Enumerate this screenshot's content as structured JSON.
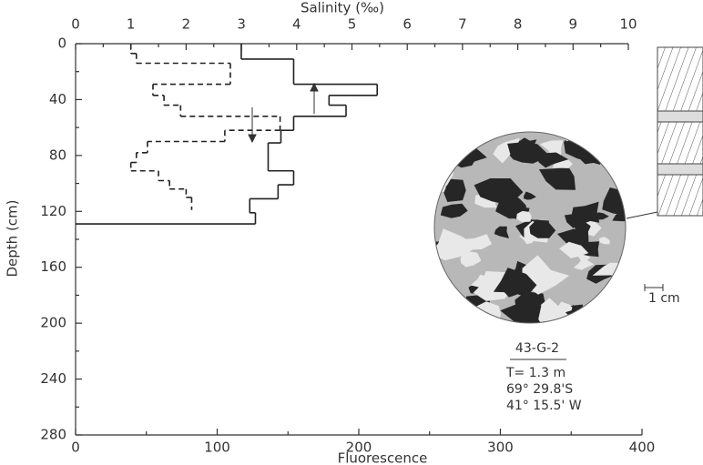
{
  "chart_data": {
    "type": "step-profile",
    "x_label": "Fluorescence",
    "x2_label": "Salinity (‰)",
    "y_label": "Depth (cm)",
    "xlim": [
      0,
      400
    ],
    "xticks": [
      0,
      100,
      200,
      300,
      400
    ],
    "x2lim": [
      0,
      10
    ],
    "x2ticks": [
      0,
      1,
      2,
      3,
      4,
      5,
      6,
      7,
      8,
      9,
      10
    ],
    "ylim": [
      0,
      280
    ],
    "yticks": [
      0,
      40,
      80,
      120,
      160,
      200,
      240,
      280
    ],
    "y_inverted": true,
    "series": [
      {
        "color": "#222",
        "dashed": false,
        "depths": [
          0,
          11,
          29,
          37,
          44,
          52,
          62,
          71,
          91,
          101,
          111,
          121,
          129
        ],
        "values": [
          117,
          154,
          213,
          179,
          191,
          154,
          145,
          136,
          154,
          143,
          123,
          127
        ]
      },
      {
        "color": "#222",
        "dashed": true,
        "axis": "x2",
        "depths": [
          0,
          7,
          14,
          29,
          37,
          44,
          52,
          62,
          70,
          78,
          85,
          91,
          98,
          104,
          110,
          119
        ],
        "values": [
          1.0,
          1.1,
          2.8,
          1.4,
          1.6,
          1.9,
          3.7,
          2.7,
          1.3,
          1.1,
          1.0,
          1.5,
          1.7,
          2.0,
          2.1
        ]
      }
    ],
    "annotations": {
      "sample": "43-G-2",
      "thickness": "T= 1.3 m",
      "latitude": "69° 29.8'S",
      "longitude": "41° 15.5' W",
      "scale": "1 cm"
    }
  }
}
